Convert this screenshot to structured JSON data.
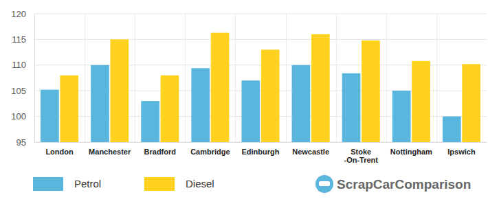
{
  "chart_data": {
    "type": "bar",
    "categories": [
      "London",
      "Manchester",
      "Bradford",
      "Cambridge",
      "Edinburgh",
      "Newcastle",
      "Stoke -On-Trent",
      "Nottingham",
      "Ipswich"
    ],
    "series": [
      {
        "name": "Petrol",
        "color": "#5ab6dd",
        "values": [
          105.2,
          110,
          103,
          109.4,
          107,
          110,
          108.4,
          105,
          100
        ]
      },
      {
        "name": "Diesel",
        "color": "#ffd21f",
        "values": [
          108,
          115,
          108,
          116.3,
          113,
          116,
          114.8,
          110.8,
          110.2
        ]
      }
    ],
    "ylim": [
      95,
      120
    ],
    "yticks": [
      95,
      100,
      105,
      110,
      115,
      120
    ],
    "grid": true,
    "legend": "bottom-left",
    "annotations": [
      "ScrapCarComparison"
    ]
  }
}
